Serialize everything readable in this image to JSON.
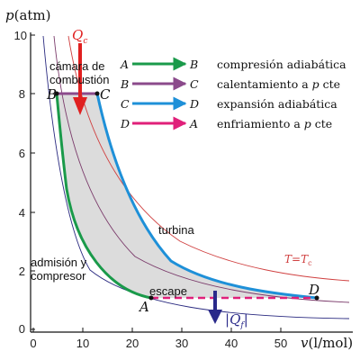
{
  "axes": {
    "y_label_var": "p",
    "y_label_unit": "(atm)",
    "x_label_var": "v",
    "x_label_unit": "(l/mol)",
    "x_ticks": [
      "0",
      "10",
      "20",
      "30",
      "40",
      "50"
    ],
    "y_ticks": [
      "0",
      "2",
      "4",
      "6",
      "8",
      "10"
    ]
  },
  "points": {
    "A": "A",
    "B": "B",
    "C": "C",
    "D": "D"
  },
  "heat": {
    "q_in_letter": "Q",
    "q_in_sub": "c",
    "q_out_letter": "Q",
    "q_out_sub": "f"
  },
  "labels": {
    "chamber_line1": "cámara de",
    "chamber_line2": "combustión",
    "turbine": "turbina",
    "intake_line1": "admisión y",
    "intake_line2": "compresor",
    "exhaust": "escape",
    "isotherm_T": "T",
    "isotherm_eq": "=",
    "isotherm_Tc": "T",
    "isotherm_sub": "c"
  },
  "legend": [
    {
      "from": "A",
      "to": "B",
      "text": "compresión adiabática",
      "color": "#1a9a4a"
    },
    {
      "from": "B",
      "to": "C",
      "text_pre": "calentamiento a ",
      "text_var": "p",
      "text_post": " cte",
      "color": "#8b4a8b"
    },
    {
      "from": "C",
      "to": "D",
      "text": "expansión adiabática",
      "color": "#1e90d8"
    },
    {
      "from": "D",
      "to": "A",
      "text_pre": "enfriamiento a ",
      "text_var": "p",
      "text_post": " cte",
      "color": "#e0207a"
    }
  ],
  "colors": {
    "compression": "#1a9a4a",
    "heating": "#8b4a8b",
    "expansion": "#1e90d8",
    "cooling": "#e0207a",
    "heat_in": "#e02020",
    "heat_out": "#2a2a8a",
    "isotherm_hot": "#d04040",
    "isotherm": "#7a3a6a",
    "isotherm_cold": "#2a2a80",
    "cycle_fill": "#dcdcdc"
  }
}
